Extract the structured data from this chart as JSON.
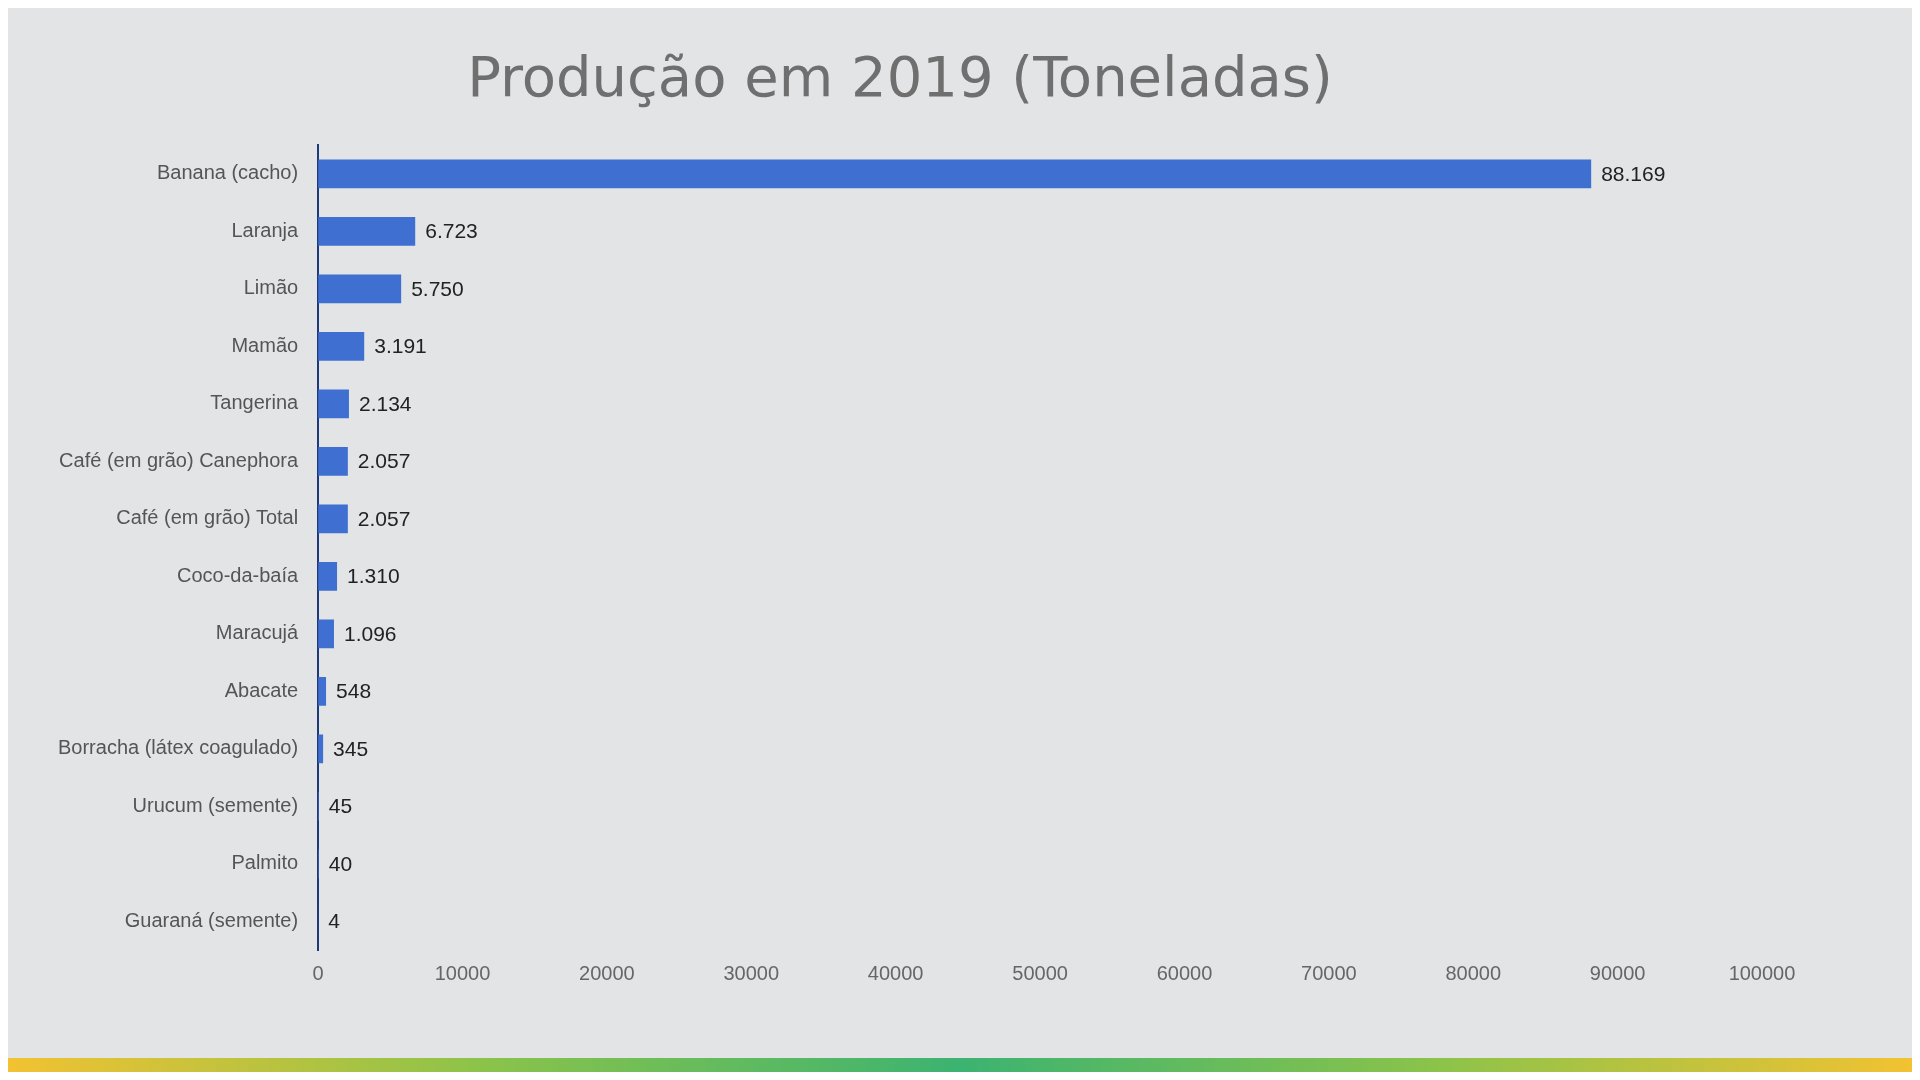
{
  "chart_data": {
    "type": "bar",
    "orientation": "horizontal",
    "title": "Produção em 2019 (Toneladas)",
    "categories": [
      "Banana (cacho)",
      "Laranja",
      "Limão",
      "Mamão",
      "Tangerina",
      "Café (em grão) Canephora",
      "Café (em grão) Total",
      "Coco-da-baía",
      "Maracujá",
      "Abacate",
      "Borracha (látex coagulado)",
      "Urucum (semente)",
      "Palmito",
      "Guaraná (semente)"
    ],
    "values": [
      88169,
      6723,
      5750,
      3191,
      2134,
      2057,
      2057,
      1310,
      1096,
      548,
      345,
      45,
      40,
      4
    ],
    "value_labels": [
      "88.169",
      "6.723",
      "5.750",
      "3.191",
      "2.134",
      "2.057",
      "2.057",
      "1.310",
      "1.096",
      "548",
      "345",
      "45",
      "40",
      "4"
    ],
    "color": "#3f6fd1",
    "xlim": [
      0,
      100000
    ],
    "xticks": [
      0,
      10000,
      20000,
      30000,
      40000,
      50000,
      60000,
      70000,
      80000,
      90000,
      100000
    ],
    "grid": false,
    "legend": false
  }
}
